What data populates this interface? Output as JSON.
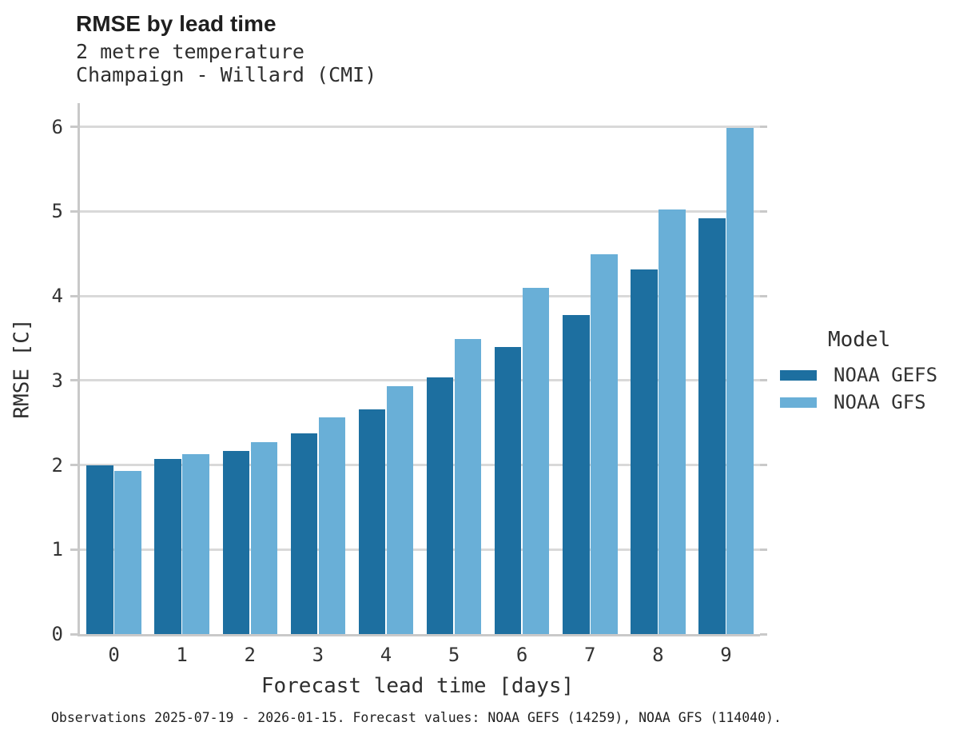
{
  "header": {
    "title": "RMSE by lead time",
    "subtitle_line1": "2 metre temperature",
    "subtitle_line2": "Champaign - Willard (CMI)"
  },
  "legend": {
    "title": "Model"
  },
  "caption": "Observations 2025-07-19 - 2026-01-15. Forecast values: NOAA GEFS (14259), NOAA GFS (114040).",
  "colors": {
    "gefs_bar": "#1d6fa0",
    "gfs_bar": "#69afd7",
    "gridline": "#d9d9d9",
    "axis": "#c9c9c9",
    "text": "#2e2e2e"
  },
  "chart_data": {
    "type": "bar",
    "title": "RMSE by lead time",
    "subtitle": [
      "2 metre temperature",
      "Champaign - Willard (CMI)"
    ],
    "categories": [
      "0",
      "1",
      "2",
      "3",
      "4",
      "5",
      "6",
      "7",
      "8",
      "9"
    ],
    "series": [
      {
        "name": "NOAA GEFS",
        "color": "#1d6fa0",
        "values": [
          2.0,
          2.07,
          2.17,
          2.37,
          2.66,
          3.04,
          3.4,
          3.77,
          4.31,
          4.92
        ]
      },
      {
        "name": "NOAA GFS",
        "color": "#69afd7",
        "values": [
          1.93,
          2.13,
          2.27,
          2.56,
          2.93,
          3.49,
          4.1,
          4.49,
          5.02,
          5.99
        ]
      }
    ],
    "xlabel": "Forecast lead time [days]",
    "ylabel": "RMSE [C]",
    "ylim": [
      0,
      6.28
    ],
    "yticks": [
      0,
      1,
      2,
      3,
      4,
      5,
      6
    ],
    "grid": true,
    "legend_title": "Model",
    "legend_position": "right"
  }
}
